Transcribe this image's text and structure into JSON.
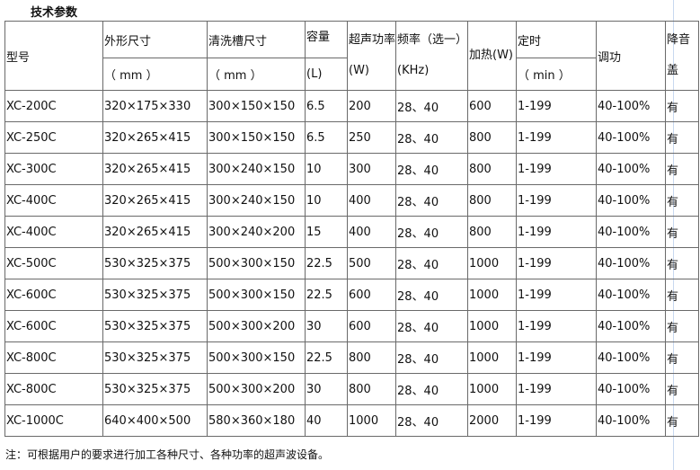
{
  "title": "技术参数",
  "headers": {
    "model": "型号",
    "outer": "外形尺寸",
    "outer_unit": "（ mm ）",
    "tank": "清洗槽尺寸",
    "tank_unit": "（ mm ）",
    "capacity": "容量",
    "capacity_unit": "(L)",
    "power": "超声功率(W)",
    "freq": "频率（选一）(KHz)",
    "heat": "加热(W)",
    "timer": "定时",
    "timer_unit": "（ min ）",
    "adjust": "调功",
    "lid": "降音盖"
  },
  "rows": [
    [
      "XC-200C",
      "320×175×330",
      "300×150×150",
      "6.5",
      "200",
      "28、40",
      "600",
      "1-199",
      "40-100%",
      "有"
    ],
    [
      "XC-250C",
      "320×265×415",
      "300×150×150",
      "6.5",
      "250",
      "28、40",
      "800",
      "1-199",
      "40-100%",
      "有"
    ],
    [
      "XC-300C",
      "320×265×415",
      "300×240×150",
      "10",
      "300",
      "28、40",
      "800",
      "1-199",
      "40-100%",
      "有"
    ],
    [
      "XC-400C",
      "320×265×415",
      "300×240×150",
      "10",
      "400",
      "28、40",
      "800",
      "1-199",
      "40-100%",
      "有"
    ],
    [
      "XC-400C",
      "320×265×415",
      "300×240×200",
      "15",
      "400",
      "28、40",
      "800",
      "1-199",
      "40-100%",
      "有"
    ],
    [
      "XC-500C",
      "530×325×375",
      "500×300×150",
      "22.5",
      "500",
      "28、40",
      "1000",
      "1-199",
      "40-100%",
      "有"
    ],
    [
      "XC-600C",
      "530×325×375",
      "500×300×150",
      "22.5",
      "600",
      "28、40",
      "1000",
      "1-199",
      "40-100%",
      "有"
    ],
    [
      "XC-600C",
      "530×325×375",
      "500×300×200",
      "30",
      "600",
      "28、40",
      "1000",
      "1-199",
      "40-100%",
      "有"
    ],
    [
      "XC-800C",
      "530×325×375",
      "500×300×150",
      "22.5",
      "800",
      "28、40",
      "1000",
      "1-199",
      "40-100%",
      "有"
    ],
    [
      "XC-800C",
      "530×325×375",
      "500×300×200",
      "30",
      "800",
      "28、40",
      "1000",
      "1-199",
      "40-100%",
      "有"
    ],
    [
      "XC-1000C",
      "640×400×500",
      "580×360×180",
      "40",
      "1000",
      "28、40",
      "2000",
      "1-199",
      "40-100%",
      "有"
    ]
  ],
  "note": "注：可根据用户的要求进行加工各种尺寸、各种功率的超声波设备。"
}
